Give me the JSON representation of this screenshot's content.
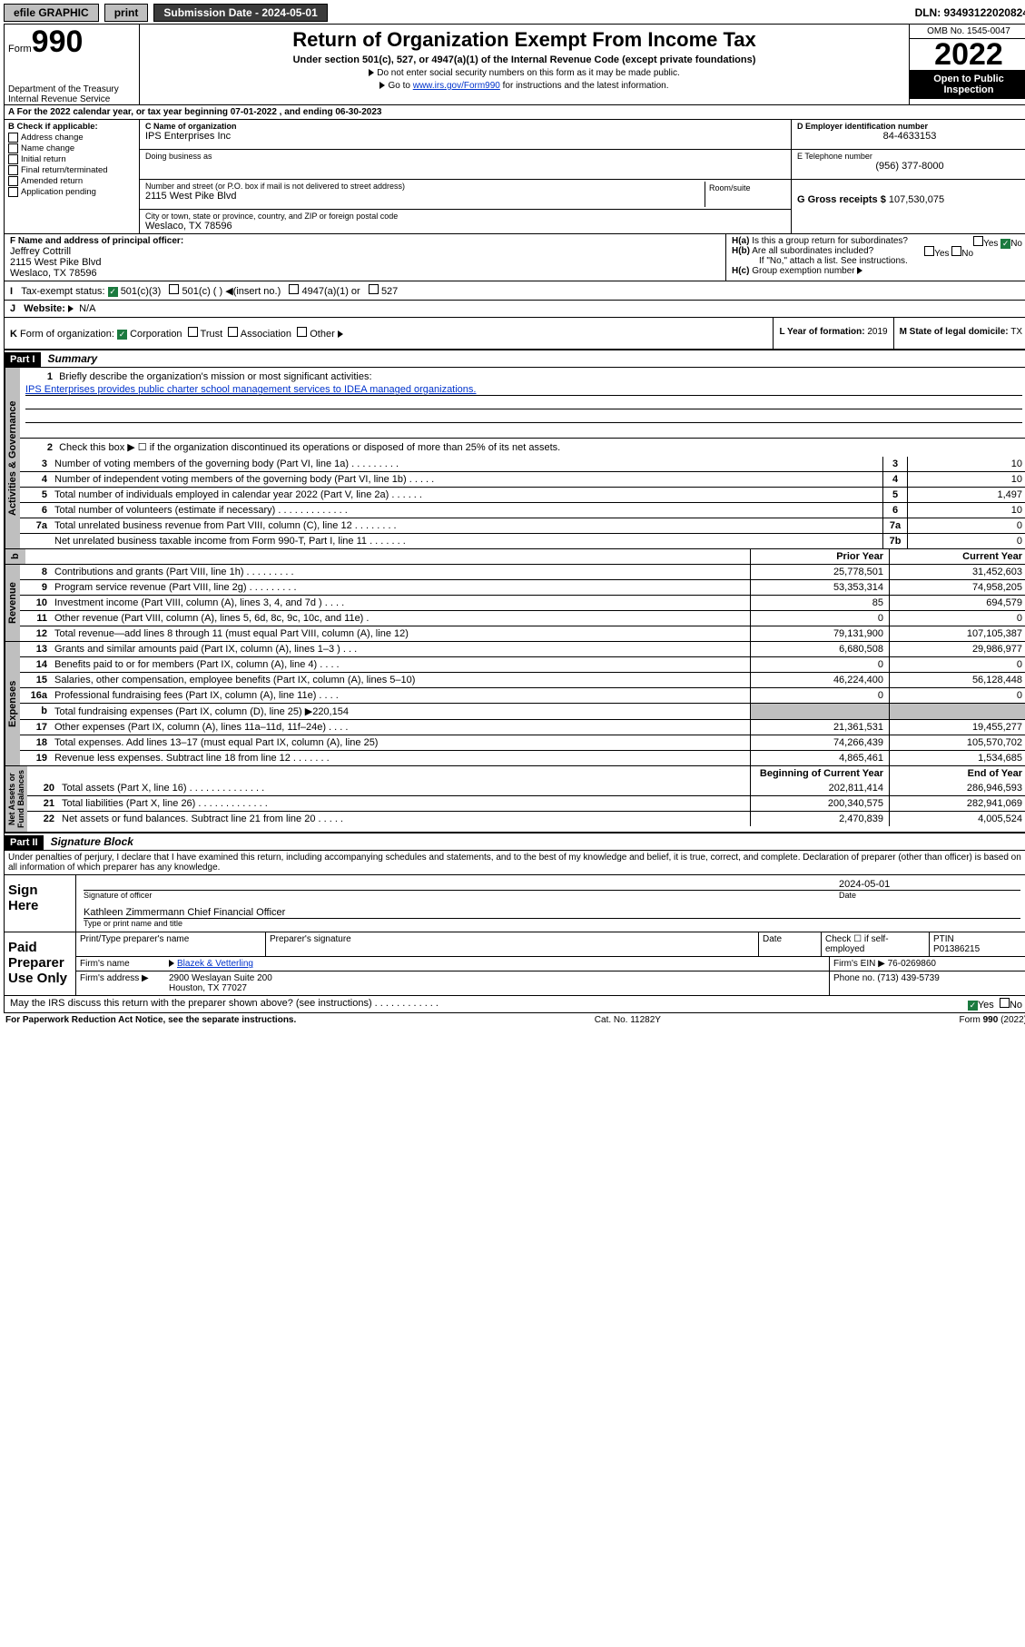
{
  "topbar": {
    "efile": "efile GRAPHIC",
    "print": "print",
    "sub_date_label": "Submission Date - 2024-05-01",
    "dln": "DLN: 93493122020824"
  },
  "header": {
    "form_word": "Form",
    "form_no": "990",
    "dept": "Department of the Treasury\nInternal Revenue Service",
    "title": "Return of Organization Exempt From Income Tax",
    "sub1": "Under section 501(c), 527, or 4947(a)(1) of the Internal Revenue Code (except private foundations)",
    "sub2": "Do not enter social security numbers on this form as it may be made public.",
    "sub3_a": "Go to ",
    "sub3_link": "www.irs.gov/Form990",
    "sub3_b": " for instructions and the latest information.",
    "omb": "OMB No. 1545-0047",
    "year": "2022",
    "open": "Open to Public Inspection"
  },
  "rowA": "For the 2022 calendar year, or tax year beginning 07-01-2022   , and ending 06-30-2023",
  "B": {
    "label": "B Check if applicable:",
    "opts": [
      "Address change",
      "Name change",
      "Initial return",
      "Final return/terminated",
      "Amended return",
      "Application pending"
    ]
  },
  "C": {
    "label": "C Name of organization",
    "name": "IPS Enterprises Inc",
    "dba_label": "Doing business as",
    "addr_label": "Number and street (or P.O. box if mail is not delivered to street address)",
    "room_label": "Room/suite",
    "addr": "2115 West Pike Blvd",
    "city_label": "City or town, state or province, country, and ZIP or foreign postal code",
    "city": "Weslaco, TX  78596"
  },
  "D": {
    "label": "D Employer identification number",
    "val": "84-4633153"
  },
  "E": {
    "label": "E Telephone number",
    "val": "(956) 377-8000"
  },
  "G": {
    "label": "G Gross receipts $",
    "val": "107,530,075"
  },
  "F": {
    "label": "F  Name and address of principal officer:",
    "name": "Jeffrey Cottrill",
    "addr1": "2115 West Pike Blvd",
    "addr2": "Weslaco, TX  78596"
  },
  "H": {
    "a": "Is this a group return for subordinates?",
    "b": "Are all subordinates included?",
    "note": "If \"No,\" attach a list. See instructions.",
    "c": "Group exemption number",
    "yes": "Yes",
    "no": "No"
  },
  "I": {
    "label": "Tax-exempt status:",
    "opts": [
      "501(c)(3)",
      "501(c) (  )",
      "(insert no.)",
      "4947(a)(1) or",
      "527"
    ]
  },
  "J": {
    "label": "Website:",
    "val": "N/A"
  },
  "K": {
    "label": "Form of organization:",
    "opts": [
      "Corporation",
      "Trust",
      "Association",
      "Other"
    ]
  },
  "L": {
    "label": "L Year of formation:",
    "val": "2019"
  },
  "M": {
    "label": "M State of legal domicile:",
    "val": "TX"
  },
  "partI": {
    "title": "Part I",
    "summary": "Summary",
    "l1": "Briefly describe the organization's mission or most significant activities:",
    "mission": "IPS Enterprises provides public charter school management services to IDEA managed organizations.",
    "l2": "Check this box ▶ ☐  if the organization discontinued its operations or disposed of more than 25% of its net assets.",
    "gov_lines": [
      {
        "n": "3",
        "t": "Number of voting members of the governing body (Part VI, line 1a)   .    .    .    .    .    .    .    .    .",
        "b": "3",
        "v": "10"
      },
      {
        "n": "4",
        "t": "Number of independent voting members of the governing body (Part VI, line 1b)   .    .    .    .    .",
        "b": "4",
        "v": "10"
      },
      {
        "n": "5",
        "t": "Total number of individuals employed in calendar year 2022 (Part V, line 2a)   .    .    .    .    .    .",
        "b": "5",
        "v": "1,497"
      },
      {
        "n": "6",
        "t": "Total number of volunteers (estimate if necessary)   .    .    .    .    .    .    .    .    .    .    .    .    .",
        "b": "6",
        "v": "10"
      },
      {
        "n": "7a",
        "t": "Total unrelated business revenue from Part VIII, column (C), line 12   .    .    .    .    .    .    .    .",
        "b": "7a",
        "v": "0"
      },
      {
        "n": "",
        "t": "Net unrelated business taxable income from Form 990-T, Part I, line 11   .    .    .    .    .    .    .",
        "b": "7b",
        "v": "0"
      }
    ],
    "b_hdr": "b",
    "col_prior": "Prior Year",
    "col_curr": "Current Year",
    "rev": [
      {
        "n": "8",
        "t": "Contributions and grants (Part VIII, line 1h)   .    .    .    .    .    .    .    .    .",
        "p": "25,778,501",
        "c": "31,452,603"
      },
      {
        "n": "9",
        "t": "Program service revenue (Part VIII, line 2g)   .    .    .    .    .    .    .    .    .",
        "p": "53,353,314",
        "c": "74,958,205"
      },
      {
        "n": "10",
        "t": "Investment income (Part VIII, column (A), lines 3, 4, and 7d )   .    .    .    .",
        "p": "85",
        "c": "694,579"
      },
      {
        "n": "11",
        "t": "Other revenue (Part VIII, column (A), lines 5, 6d, 8c, 9c, 10c, and 11e)   .",
        "p": "0",
        "c": "0"
      },
      {
        "n": "12",
        "t": "Total revenue—add lines 8 through 11 (must equal Part VIII, column (A), line 12)",
        "p": "79,131,900",
        "c": "107,105,387"
      }
    ],
    "exp": [
      {
        "n": "13",
        "t": "Grants and similar amounts paid (Part IX, column (A), lines 1–3 )   .    .    .",
        "p": "6,680,508",
        "c": "29,986,977"
      },
      {
        "n": "14",
        "t": "Benefits paid to or for members (Part IX, column (A), line 4)   .    .    .    .",
        "p": "0",
        "c": "0"
      },
      {
        "n": "15",
        "t": "Salaries, other compensation, employee benefits (Part IX, column (A), lines 5–10)",
        "p": "46,224,400",
        "c": "56,128,448"
      },
      {
        "n": "16a",
        "t": "Professional fundraising fees (Part IX, column (A), line 11e)   .    .    .    .",
        "p": "0",
        "c": "0"
      },
      {
        "n": "b",
        "t": "Total fundraising expenses (Part IX, column (D), line 25) ▶220,154",
        "p": "",
        "c": "",
        "shade": true
      },
      {
        "n": "17",
        "t": "Other expenses (Part IX, column (A), lines 11a–11d, 11f–24e)   .    .    .    .",
        "p": "21,361,531",
        "c": "19,455,277"
      },
      {
        "n": "18",
        "t": "Total expenses. Add lines 13–17 (must equal Part IX, column (A), line 25)",
        "p": "74,266,439",
        "c": "105,570,702"
      },
      {
        "n": "19",
        "t": "Revenue less expenses. Subtract line 18 from line 12   .    .    .    .    .    .    .",
        "p": "4,865,461",
        "c": "1,534,685"
      }
    ],
    "col_beg": "Beginning of Current Year",
    "col_end": "End of Year",
    "net": [
      {
        "n": "20",
        "t": "Total assets (Part X, line 16)   .    .    .    .    .    .    .    .    .    .    .    .    .    .",
        "p": "202,811,414",
        "c": "286,946,593"
      },
      {
        "n": "21",
        "t": "Total liabilities (Part X, line 26)   .    .    .    .    .    .    .    .    .    .    .    .    .",
        "p": "200,340,575",
        "c": "282,941,069"
      },
      {
        "n": "22",
        "t": "Net assets or fund balances. Subtract line 21 from line 20   .    .    .    .    .",
        "p": "2,470,839",
        "c": "4,005,524"
      }
    ],
    "vtabs": {
      "gov": "Activities & Governance",
      "rev": "Revenue",
      "exp": "Expenses",
      "net": "Net Assets or\nFund Balances"
    }
  },
  "partII": {
    "title": "Part II",
    "sub": "Signature Block",
    "decl": "Under penalties of perjury, I declare that I have examined this return, including accompanying schedules and statements, and to the best of my knowledge and belief, it is true, correct, and complete. Declaration of preparer (other than officer) is based on all information of which preparer has any knowledge.",
    "sign_here": "Sign Here",
    "sig_officer": "Signature of officer",
    "date": "Date",
    "sig_date": "2024-05-01",
    "name_title": "Kathleen Zimmermann  Chief Financial Officer",
    "type_name": "Type or print name and title",
    "paid": "Paid Preparer Use Only",
    "pp_name": "Print/Type preparer's name",
    "pp_sig": "Preparer's signature",
    "pp_date": "Date",
    "pp_check": "Check ☐ if self-employed",
    "ptin_l": "PTIN",
    "ptin": "P01386215",
    "firm_name_l": "Firm's name",
    "firm_name": "Blazek & Vetterling",
    "firm_ein_l": "Firm's EIN ▶",
    "firm_ein": "76-0269860",
    "firm_addr_l": "Firm's address ▶",
    "firm_addr1": "2900 Weslayan Suite 200",
    "firm_addr2": "Houston, TX  77027",
    "phone_l": "Phone no.",
    "phone": "(713) 439-5739",
    "discuss": "May the IRS discuss this return with the preparer shown above? (see instructions)   .    .    .    .    .    .    .    .    .    .    .    .",
    "yes": "Yes",
    "no": "No"
  },
  "footer": {
    "pra": "For Paperwork Reduction Act Notice, see the separate instructions.",
    "cat": "Cat. No. 11282Y",
    "form": "Form 990 (2022)"
  }
}
